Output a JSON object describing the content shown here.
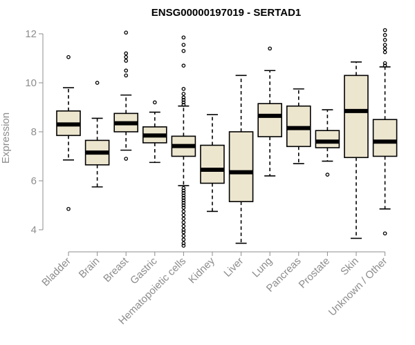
{
  "chart_data": {
    "type": "boxplot",
    "title": "ENSG00000197019 - SERTAD1",
    "xlabel": "",
    "ylabel": "Expression",
    "ylim": [
      3.2,
      12.3
    ],
    "yticks": [
      4,
      6,
      8,
      10,
      12
    ],
    "colors": {
      "box_fill": "#ede6cf",
      "stroke": "#000000",
      "axis": "#8c8c8c"
    },
    "categories": [
      "Bladder",
      "Brain",
      "Breast",
      "Gastric",
      "Hematopoietic cells",
      "Kidney",
      "Liver",
      "Lung",
      "Pancreas",
      "Prostate",
      "Skin",
      "Unknown / Other"
    ],
    "boxes": [
      {
        "q1": 7.85,
        "median": 8.3,
        "q3": 8.85,
        "whisker_low": 6.85,
        "whisker_high": 9.8,
        "outliers": [
          4.85,
          11.05
        ]
      },
      {
        "q1": 6.65,
        "median": 7.15,
        "q3": 7.65,
        "whisker_low": 5.75,
        "whisker_high": 8.55,
        "outliers": [
          10.0
        ]
      },
      {
        "q1": 8.0,
        "median": 8.35,
        "q3": 8.75,
        "whisker_low": 7.25,
        "whisker_high": 9.5,
        "outliers": [
          6.9,
          10.3,
          10.5,
          10.9,
          11.05,
          11.2,
          12.05
        ]
      },
      {
        "q1": 7.55,
        "median": 7.85,
        "q3": 8.2,
        "whisker_low": 6.75,
        "whisker_high": 8.8,
        "outliers": [
          9.2
        ]
      },
      {
        "q1": 7.0,
        "median": 7.42,
        "q3": 7.82,
        "whisker_low": 5.8,
        "whisker_high": 9.05,
        "outliers": [
          3.35,
          3.45,
          3.6,
          3.75,
          3.9,
          4.0,
          4.15,
          4.3,
          4.45,
          4.6,
          4.75,
          4.9,
          5.0,
          5.1,
          5.2,
          5.3,
          5.4,
          5.5,
          5.6,
          5.7,
          9.1,
          9.2,
          9.3,
          9.4,
          9.55,
          9.75,
          10.7,
          11.3,
          11.55,
          11.85
        ]
      },
      {
        "q1": 5.9,
        "median": 6.45,
        "q3": 7.45,
        "whisker_low": 4.75,
        "whisker_high": 8.7,
        "outliers": []
      },
      {
        "q1": 5.15,
        "median": 6.35,
        "q3": 8.0,
        "whisker_low": 3.45,
        "whisker_high": 10.3,
        "outliers": []
      },
      {
        "q1": 7.8,
        "median": 8.65,
        "q3": 9.15,
        "whisker_low": 6.2,
        "whisker_high": 10.5,
        "outliers": [
          11.4
        ]
      },
      {
        "q1": 7.4,
        "median": 8.15,
        "q3": 9.05,
        "whisker_low": 6.7,
        "whisker_high": 9.75,
        "outliers": []
      },
      {
        "q1": 7.35,
        "median": 7.6,
        "q3": 8.05,
        "whisker_low": 6.8,
        "whisker_high": 8.9,
        "outliers": [
          6.25
        ]
      },
      {
        "q1": 6.95,
        "median": 8.85,
        "q3": 10.3,
        "whisker_low": 3.65,
        "whisker_high": 10.85,
        "outliers": []
      },
      {
        "q1": 7.0,
        "median": 7.6,
        "q3": 8.5,
        "whisker_low": 4.85,
        "whisker_high": 10.65,
        "outliers": [
          3.85,
          10.7,
          10.8,
          11.25,
          11.4,
          11.55,
          11.75,
          11.95,
          12.15
        ]
      }
    ]
  }
}
